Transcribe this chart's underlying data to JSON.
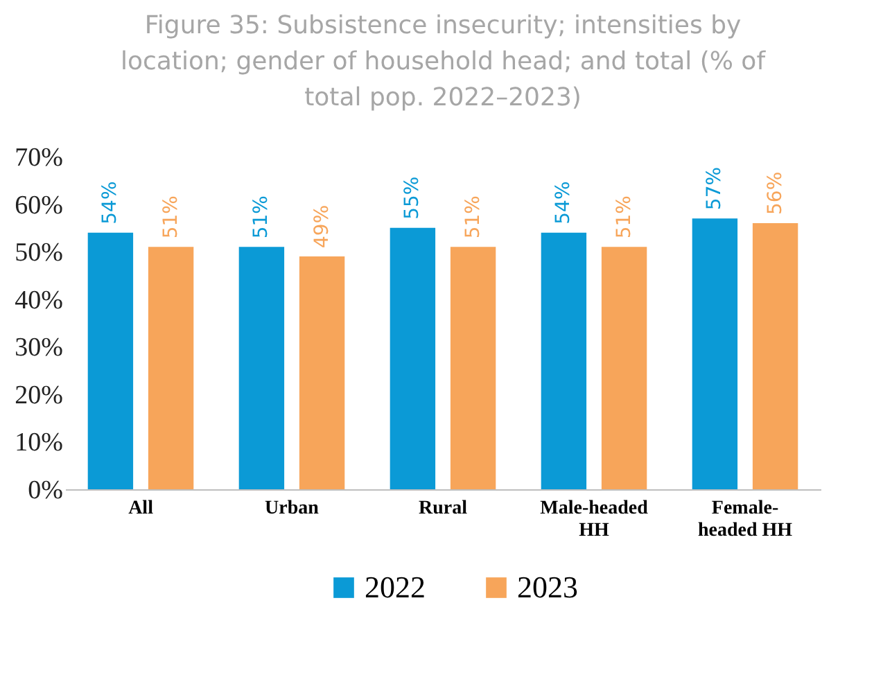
{
  "chart_data": {
    "type": "bar",
    "title": "Figure 35: Subsistence insecurity; intensities by location; gender of household head; and total (% of total pop. 2022–2023)",
    "categories": [
      "All",
      "Urban",
      "Rural",
      "Male-headed HH",
      "Female-headed HH"
    ],
    "series": [
      {
        "name": "2022",
        "color": "#0b9ad6",
        "values": [
          54,
          51,
          55,
          54,
          57
        ],
        "value_labels": [
          "54%",
          "51%",
          "55%",
          "54%",
          "57%"
        ]
      },
      {
        "name": "2023",
        "color": "#f7a55a",
        "values": [
          51,
          49,
          51,
          51,
          56
        ],
        "value_labels": [
          "51%",
          "49%",
          "51%",
          "51%",
          "56%"
        ]
      }
    ],
    "ylim": [
      0,
      70
    ],
    "yticks": [
      {
        "value": 0,
        "label": "0%"
      },
      {
        "value": 10,
        "label": "10%"
      },
      {
        "value": 20,
        "label": "20%"
      },
      {
        "value": 30,
        "label": "30%"
      },
      {
        "value": 40,
        "label": "40%"
      },
      {
        "value": 50,
        "label": "50%"
      },
      {
        "value": 60,
        "label": "60%"
      },
      {
        "value": 70,
        "label": "70%"
      }
    ],
    "grid": false,
    "legend": "bottom"
  }
}
